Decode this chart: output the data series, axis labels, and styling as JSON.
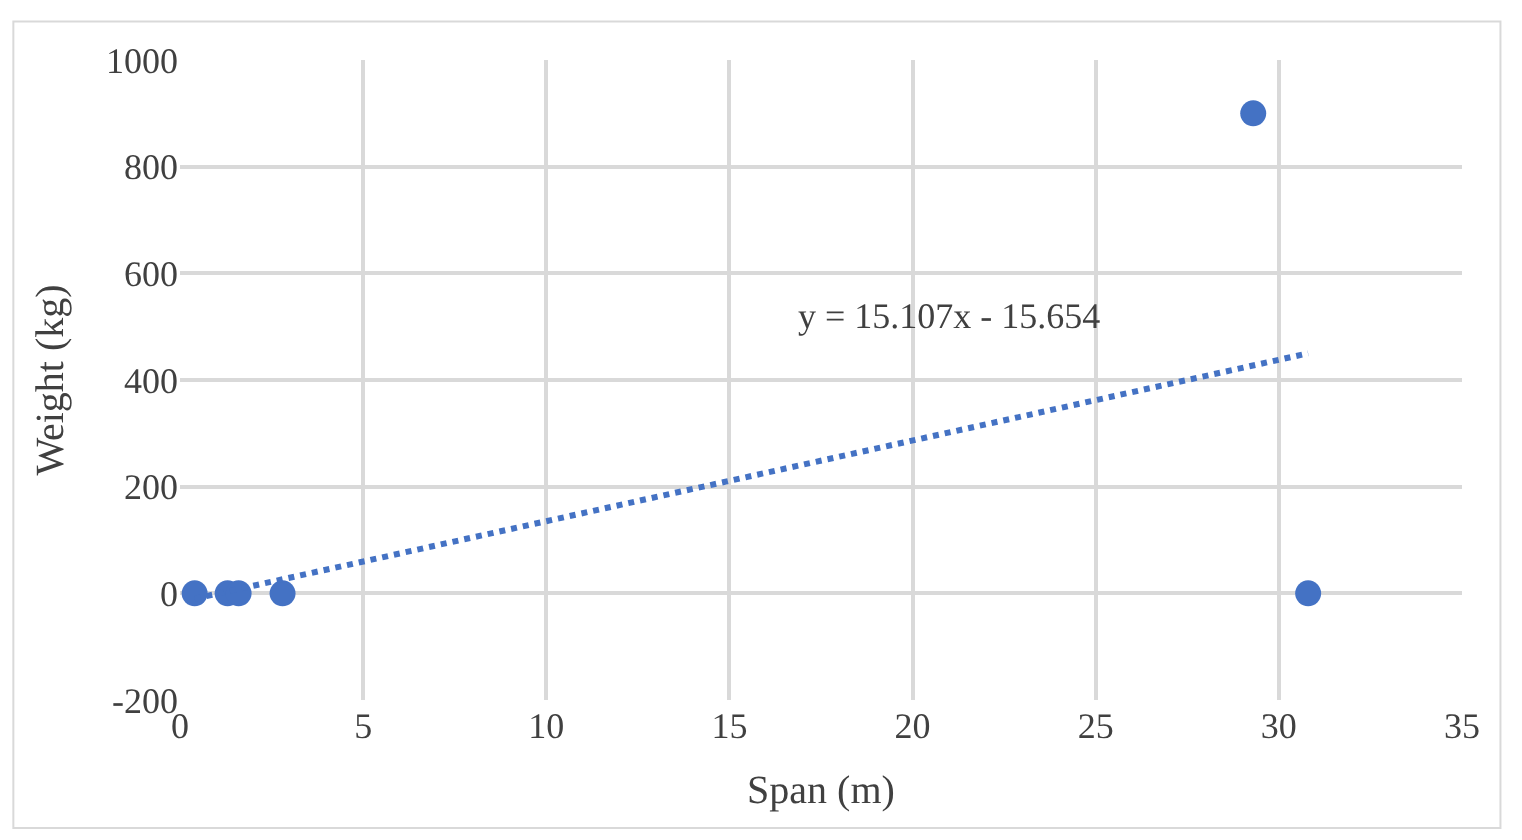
{
  "chart_data": {
    "type": "scatter",
    "xlabel": "Span (m)",
    "ylabel": "Weight (kg)",
    "xlim": [
      0,
      35
    ],
    "xticks": [
      0,
      5,
      10,
      15,
      20,
      25,
      30,
      35
    ],
    "ylim": [
      -200,
      1000
    ],
    "yticks": [
      -200,
      0,
      200,
      400,
      600,
      800,
      1000
    ],
    "grid": true,
    "marker": "circle",
    "series": [
      {
        "color": "#4472c4",
        "x": [
          0.4,
          1.3,
          1.6,
          2.8,
          29.3,
          30.8
        ],
        "values": [
          0,
          0,
          0,
          0,
          900,
          0
        ]
      },
      {
        "type": "line",
        "color": "#4472c4",
        "line_style": "dotted",
        "marker": "none",
        "x": [
          0.4,
          30.8
        ],
        "values": [
          -10,
          450
        ]
      }
    ],
    "annotations": [
      "y = 15.107x - 15.654"
    ]
  }
}
